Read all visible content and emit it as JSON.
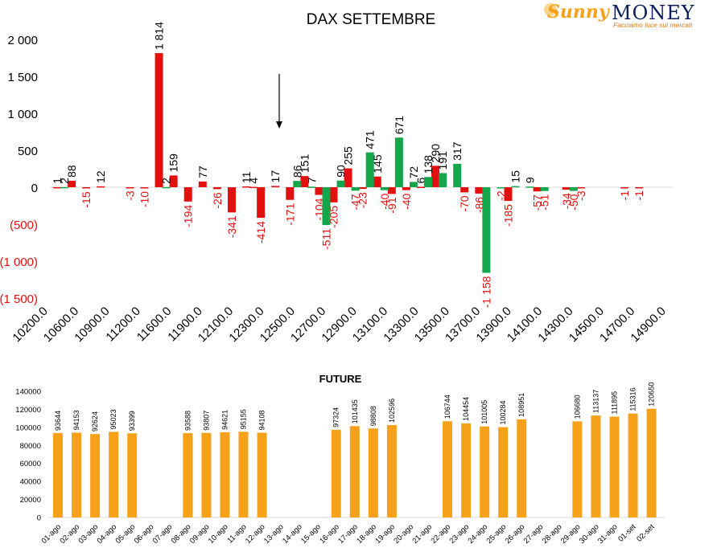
{
  "logo": {
    "brand_left": "Sunny",
    "brand_right": "MONEY",
    "tagline": "Facciamo luce sui mercati"
  },
  "colors": {
    "positive": "#13a64a",
    "negative": "#e31010",
    "future_bar": "#f5a11a",
    "axis_text": "#000000",
    "negative_text": "#e31010"
  },
  "chart_data": [
    {
      "type": "bar",
      "title": "DAX SETTEMBRE",
      "xlabel": "",
      "ylabel": "",
      "ylim": [
        -1500,
        2000
      ],
      "yticks": [
        {
          "value": 2000,
          "label": "2 000"
        },
        {
          "value": 1500,
          "label": "1 500"
        },
        {
          "value": 1000,
          "label": "1 000"
        },
        {
          "value": 500,
          "label": "500"
        },
        {
          "value": 0,
          "label": "0"
        },
        {
          "value": -500,
          "label": "(500)"
        },
        {
          "value": -1000,
          "label": "(1 000)"
        },
        {
          "value": -1500,
          "label": "(1 500)"
        }
      ],
      "xtick_labels": [
        "10200.0",
        "10600.0",
        "10900.0",
        "11200.0",
        "11600.0",
        "11900.0",
        "12100.0",
        "12300.0",
        "12500.0",
        "12700.0",
        "12900.0",
        "13100.0",
        "13300.0",
        "13500.0",
        "13700.0",
        "13900.0",
        "14100.0",
        "14300.0",
        "14500.0",
        "14700.0",
        "14900.0"
      ],
      "series": [
        {
          "color": "red",
          "values": [
            {
              "slot": 0,
              "value": 1,
              "label": "1"
            },
            {
              "slot": 1,
              "value": 88,
              "label": "88"
            },
            {
              "slot": 2,
              "value": -15,
              "label": "-15"
            },
            {
              "slot": 3,
              "value": 12,
              "label": "12"
            },
            {
              "slot": 5,
              "value": -3,
              "label": "-3"
            },
            {
              "slot": 6,
              "value": -10,
              "label": "-10"
            },
            {
              "slot": 7,
              "value": 1814,
              "label": "1 814"
            },
            {
              "slot": 8,
              "value": 159,
              "label": "159"
            },
            {
              "slot": 9,
              "value": -194,
              "label": "-194"
            },
            {
              "slot": 10,
              "value": 77,
              "label": "77"
            },
            {
              "slot": 11,
              "value": -26,
              "label": "-26"
            },
            {
              "slot": 12,
              "value": -341,
              "label": "-341"
            },
            {
              "slot": 13,
              "value": 11,
              "label": "11"
            },
            {
              "slot": 13.5,
              "value": 4,
              "label": "4"
            },
            {
              "slot": 14,
              "value": -414,
              "label": "-414"
            },
            {
              "slot": 15,
              "value": 17,
              "label": "17"
            },
            {
              "slot": 16,
              "value": -171,
              "label": "-171"
            },
            {
              "slot": 17,
              "value": 151,
              "label": "151"
            },
            {
              "slot": 18,
              "value": -104,
              "label": "-104"
            },
            {
              "slot": 19,
              "value": -205,
              "label": "-205"
            },
            {
              "slot": 20,
              "value": 255,
              "label": "255"
            },
            {
              "slot": 21,
              "value": -23,
              "label": "-23"
            },
            {
              "slot": 22,
              "value": 145,
              "label": "145"
            },
            {
              "slot": 23,
              "value": -91,
              "label": "-91"
            },
            {
              "slot": 24,
              "value": -40,
              "label": "-40"
            },
            {
              "slot": 25,
              "value": 6,
              "label": "6"
            },
            {
              "slot": 26,
              "value": 290,
              "label": "290"
            },
            {
              "slot": 28,
              "value": -70,
              "label": "-70"
            },
            {
              "slot": 29,
              "value": -86,
              "label": "-86"
            },
            {
              "slot": 31,
              "value": -185,
              "label": "-185"
            },
            {
              "slot": 33,
              "value": -57,
              "label": "-57"
            },
            {
              "slot": 35,
              "value": -34,
              "label": "-34"
            },
            {
              "slot": 36,
              "value": -3,
              "label": "-3"
            },
            {
              "slot": 39,
              "value": -1,
              "label": "-1"
            },
            {
              "slot": 40,
              "value": -1,
              "label": "-1"
            }
          ]
        },
        {
          "color": "green",
          "values": [
            {
              "slot": 0.5,
              "value": 2,
              "label": "2"
            },
            {
              "slot": 7.5,
              "value": 2,
              "label": "2"
            },
            {
              "slot": 16.5,
              "value": 86,
              "label": "86"
            },
            {
              "slot": 17.5,
              "value": 7,
              "label": "7"
            },
            {
              "slot": 18.5,
              "value": -511,
              "label": "-511"
            },
            {
              "slot": 19.5,
              "value": 90,
              "label": "90"
            },
            {
              "slot": 20.5,
              "value": -47,
              "label": "-47"
            },
            {
              "slot": 21.5,
              "value": 471,
              "label": "471"
            },
            {
              "slot": 22.5,
              "value": -40,
              "label": "-40"
            },
            {
              "slot": 23.5,
              "value": 671,
              "label": "671"
            },
            {
              "slot": 24.5,
              "value": 72,
              "label": "72"
            },
            {
              "slot": 25.5,
              "value": 138,
              "label": "138"
            },
            {
              "slot": 26.5,
              "value": 191,
              "label": "191"
            },
            {
              "slot": 27.5,
              "value": 317,
              "label": "317"
            },
            {
              "slot": 29.5,
              "value": -1158,
              "label": "-1 158"
            },
            {
              "slot": 30.5,
              "value": -2,
              "label": "-2"
            },
            {
              "slot": 31.5,
              "value": 15,
              "label": "15"
            },
            {
              "slot": 32.5,
              "value": 9,
              "label": "9"
            },
            {
              "slot": 33.5,
              "value": -51,
              "label": "-51"
            },
            {
              "slot": 35.5,
              "value": -50,
              "label": "-50"
            }
          ]
        }
      ]
    },
    {
      "type": "bar",
      "title": "FUTURE",
      "xlabel": "",
      "ylabel": "",
      "ylim": [
        0,
        140000
      ],
      "yticks": [
        0,
        20000,
        40000,
        60000,
        80000,
        100000,
        120000,
        140000
      ],
      "categories": [
        "01-ago",
        "02-ago",
        "03-ago",
        "04-ago",
        "05-ago",
        "06-ago",
        "07-ago",
        "08-ago",
        "09-ago",
        "10-ago",
        "11-ago",
        "12-ago",
        "13-ago",
        "14-ago",
        "15-ago",
        "16-ago",
        "17-ago",
        "18-ago",
        "19-ago",
        "20-ago",
        "21-ago",
        "22-ago",
        "23-ago",
        "24-ago",
        "25-ago",
        "26-ago",
        "27-ago",
        "28-ago",
        "29-ago",
        "30-ago",
        "31-ago",
        "01-set",
        "02-set"
      ],
      "values": [
        93644,
        94153,
        92624,
        95023,
        93399,
        null,
        null,
        93588,
        93807,
        94621,
        95155,
        94108,
        null,
        null,
        null,
        97324,
        101435,
        98808,
        102596,
        null,
        null,
        106744,
        104454,
        101005,
        100284,
        108951,
        null,
        null,
        106680,
        113137,
        111895,
        115316,
        120650
      ]
    }
  ]
}
